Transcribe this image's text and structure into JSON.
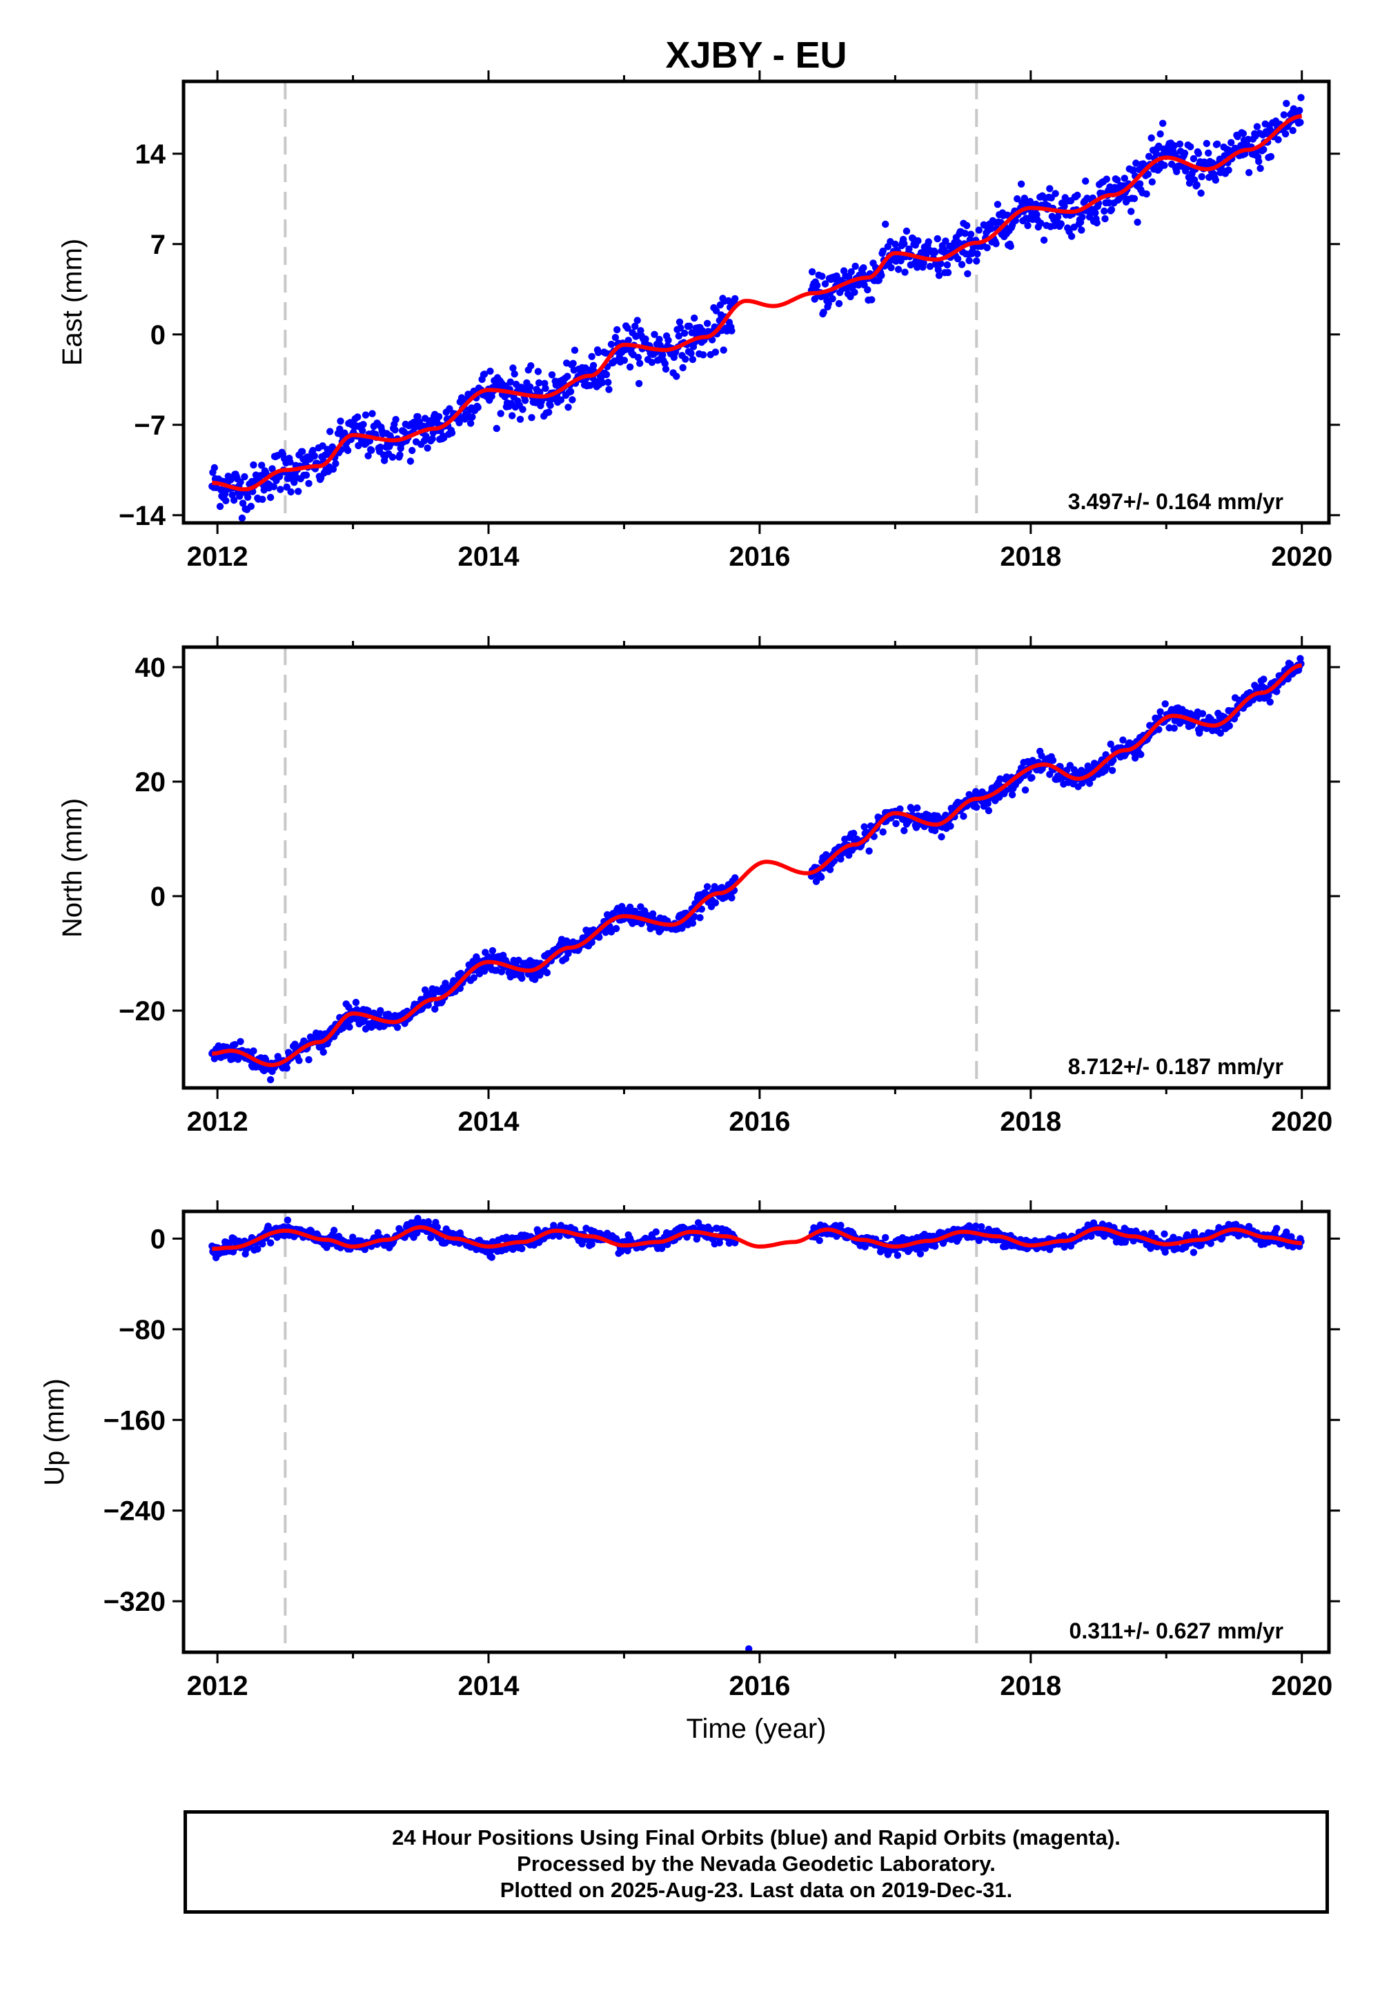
{
  "title": "XJBY - EU",
  "colors": {
    "final_orbits": "#0000ff",
    "model_fit": "#ff0000",
    "step_lines": "#c8c8c8",
    "frame": "#000000"
  },
  "footer": {
    "line1": "24 Hour Positions Using Final Orbits (blue) and Rapid Orbits (magenta).",
    "line2": "Processed by the Nevada Geodetic Laboratory.",
    "line3": "Plotted on 2025-Aug-23. Last data on 2019-Dec-31."
  },
  "chart_data": [
    {
      "type": "scatter",
      "ylabel": "East (mm)",
      "xlabel": "",
      "xlim": [
        2011.75,
        2020.2
      ],
      "ylim": [
        -14.6,
        19.6
      ],
      "xticks": [
        "2012",
        "2014",
        "2016",
        "2018",
        "2020"
      ],
      "yticks": [
        "14",
        "7",
        "0",
        "−7",
        "−14"
      ],
      "ytick_values": [
        14,
        7,
        0,
        -7,
        -14
      ],
      "rate_label": "3.497+/- 0.164 mm/yr",
      "step_lines_x": [
        2012.5,
        2017.6
      ],
      "series": [
        {
          "values_x": [
            2011.96,
            2012.2,
            2012.5,
            2012.75,
            2013.0,
            2013.3,
            2013.6,
            2014.0,
            2014.4,
            2014.75,
            2015.0,
            2015.3,
            2015.6,
            2015.9,
            2016.1,
            2016.4,
            2016.8,
            2017.0,
            2017.3,
            2017.6,
            2018.0,
            2018.3,
            2018.6,
            2019.0,
            2019.3,
            2019.6,
            2020.0
          ],
          "values_y": [
            -11.5,
            -12.0,
            -10.5,
            -10.2,
            -7.8,
            -8.2,
            -7.3,
            -4.3,
            -4.8,
            -3.2,
            -0.8,
            -1.2,
            -0.2,
            2.6,
            2.2,
            3.2,
            4.4,
            6.3,
            5.8,
            7.1,
            9.8,
            9.5,
            10.8,
            13.7,
            12.8,
            14.3,
            16.9
          ]
        }
      ],
      "outliers": []
    },
    {
      "type": "scatter",
      "ylabel": "North (mm)",
      "xlabel": "",
      "xlim": [
        2011.75,
        2020.2
      ],
      "ylim": [
        -33.5,
        43.5
      ],
      "xticks": [
        "2012",
        "2014",
        "2016",
        "2018",
        "2020"
      ],
      "yticks": [
        "40",
        "20",
        "0",
        "−20"
      ],
      "ytick_values": [
        40,
        20,
        0,
        -20
      ],
      "rate_label": "8.712+/- 0.187 mm/yr",
      "step_lines_x": [
        2012.5,
        2017.6
      ],
      "series": [
        {
          "values_x": [
            2011.96,
            2012.1,
            2012.4,
            2012.75,
            2013.0,
            2013.3,
            2013.6,
            2014.0,
            2014.3,
            2014.6,
            2015.0,
            2015.35,
            2015.7,
            2016.05,
            2016.35,
            2016.7,
            2017.0,
            2017.3,
            2017.6,
            2018.1,
            2018.35,
            2018.7,
            2019.05,
            2019.35,
            2019.7,
            2020.0
          ],
          "values_y": [
            -27.5,
            -27.0,
            -29.5,
            -25.5,
            -20.5,
            -22.0,
            -18.0,
            -11.5,
            -13.0,
            -9.0,
            -3.5,
            -5.0,
            0.5,
            6.0,
            4.0,
            9.0,
            14.5,
            12.5,
            17.0,
            23.0,
            20.5,
            25.5,
            31.5,
            29.8,
            35.5,
            40.3
          ]
        }
      ],
      "outliers": []
    },
    {
      "type": "scatter",
      "ylabel": "Up (mm)",
      "xlabel": "Time (year)",
      "xlim": [
        2011.75,
        2020.2
      ],
      "ylim": [
        -365,
        24
      ],
      "xticks": [
        "2012",
        "2014",
        "2016",
        "2018",
        "2020"
      ],
      "yticks": [
        "0",
        "−80",
        "−160",
        "−240",
        "−320"
      ],
      "ytick_values": [
        0,
        -80,
        -160,
        -240,
        -320
      ],
      "rate_label": "0.311+/- 0.627 mm/yr",
      "step_lines_x": [
        2012.5,
        2017.6
      ],
      "series": [
        {
          "values_x": [
            2011.96,
            2012.1,
            2012.5,
            2012.8,
            2013.0,
            2013.25,
            2013.5,
            2013.75,
            2014.0,
            2014.25,
            2014.5,
            2014.75,
            2015.0,
            2015.25,
            2015.5,
            2015.75,
            2016.0,
            2016.25,
            2016.5,
            2016.75,
            2017.0,
            2017.25,
            2017.5,
            2017.75,
            2018.0,
            2018.25,
            2018.5,
            2018.75,
            2019.0,
            2019.25,
            2019.5,
            2019.75,
            2020.0
          ],
          "values_y": [
            -9,
            -8,
            7,
            -1,
            -7,
            -1,
            10,
            0,
            -7,
            -3,
            7,
            2,
            -6,
            -3,
            6,
            2,
            -7,
            -3,
            8,
            -1,
            -7,
            -2,
            6,
            2,
            -6,
            -2,
            9,
            2,
            -5,
            -1,
            8,
            1,
            -4
          ]
        }
      ],
      "outliers": [
        {
          "x": 2015.92,
          "y": -362
        }
      ]
    }
  ]
}
